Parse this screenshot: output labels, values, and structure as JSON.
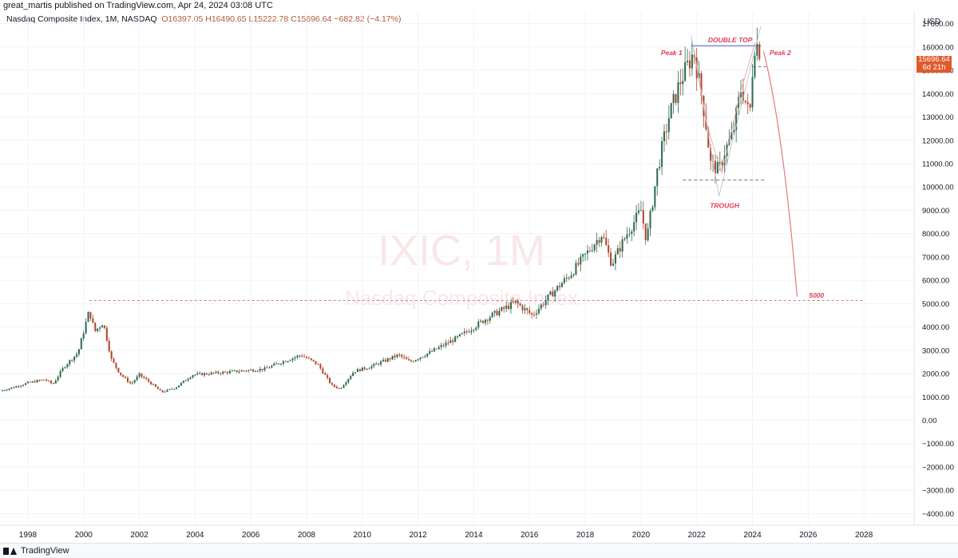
{
  "header": {
    "published": "great_martis published on TradingView.com, Apr 24, 2024 03:08 UTC",
    "symbol": "Nasdaq Composite Index, 1M, NASDAQ",
    "open": "O16397.05",
    "high": "H16490.65",
    "low": "L15222.78",
    "close": "C15696.64",
    "change": "−682.82 (−4.17%)"
  },
  "price_axis": {
    "currency": "USD",
    "current_price": "15696.64",
    "countdown": "6d 21h"
  },
  "watermark": {
    "symbol": "IXIC, 1M",
    "name": "Nasdaq Composite Index"
  },
  "footer": {
    "brand": "TradingView"
  },
  "colors": {
    "up": "#2d6b4f",
    "down": "#b4432c",
    "annotation": "#e0405a",
    "price_tag": "#e05a2b"
  },
  "chart_data": {
    "type": "candlestick",
    "title": "Nasdaq Composite Index, 1M, NASDAQ",
    "ylabel": "USD",
    "ylim": [
      -4500,
      17500
    ],
    "xlim": [
      1997.0,
      2029.8
    ],
    "grid": true,
    "x_ticks": [
      "1998",
      "2000",
      "2002",
      "2004",
      "2006",
      "2008",
      "2010",
      "2012",
      "2014",
      "2016",
      "2018",
      "2020",
      "2022",
      "2024",
      "2026",
      "2028"
    ],
    "y_ticks": [
      "17000.00",
      "16000.00",
      "15000.00",
      "14000.00",
      "13000.00",
      "12000.00",
      "11000.00",
      "10000.00",
      "9000.00",
      "8000.00",
      "7000.00",
      "6000.00",
      "5000.00",
      "4000.00",
      "3000.00",
      "2000.00",
      "1000.00",
      "0.00",
      "−1000.00",
      "−2000.00",
      "−3000.00",
      "−4000.00"
    ],
    "anchors": [
      [
        1997.0,
        1250
      ],
      [
        1998.0,
        1600
      ],
      [
        1998.6,
        1750
      ],
      [
        1998.9,
        1550
      ],
      [
        1999.3,
        2300
      ],
      [
        1999.8,
        2900
      ],
      [
        2000.2,
        4700
      ],
      [
        2000.4,
        3800
      ],
      [
        2000.7,
        4200
      ],
      [
        2001.0,
        2600
      ],
      [
        2001.3,
        2000
      ],
      [
        2001.7,
        1550
      ],
      [
        2002.0,
        1950
      ],
      [
        2002.4,
        1600
      ],
      [
        2002.8,
        1200
      ],
      [
        2003.3,
        1400
      ],
      [
        2003.9,
        1950
      ],
      [
        2004.5,
        2000
      ],
      [
        2005.5,
        2100
      ],
      [
        2006.5,
        2200
      ],
      [
        2007.0,
        2450
      ],
      [
        2007.8,
        2800
      ],
      [
        2008.4,
        2400
      ],
      [
        2008.9,
        1500
      ],
      [
        2009.2,
        1350
      ],
      [
        2009.7,
        2100
      ],
      [
        2010.3,
        2300
      ],
      [
        2011.3,
        2800
      ],
      [
        2011.7,
        2500
      ],
      [
        2012.5,
        2950
      ],
      [
        2013.5,
        3600
      ],
      [
        2014.5,
        4400
      ],
      [
        2015.5,
        5050
      ],
      [
        2016.1,
        4500
      ],
      [
        2016.7,
        5300
      ],
      [
        2017.5,
        6300
      ],
      [
        2018.6,
        8000
      ],
      [
        2018.95,
        6700
      ],
      [
        2019.5,
        8000
      ],
      [
        2020.0,
        9000
      ],
      [
        2020.2,
        7700
      ],
      [
        2020.6,
        10800
      ],
      [
        2021.0,
        13000
      ],
      [
        2021.4,
        14500
      ],
      [
        2021.9,
        15800
      ],
      [
        2022.3,
        13000
      ],
      [
        2022.5,
        11000
      ],
      [
        2022.8,
        10700
      ],
      [
        2023.0,
        11500
      ],
      [
        2023.3,
        12300
      ],
      [
        2023.6,
        14300
      ],
      [
        2023.9,
        13000
      ],
      [
        2024.0,
        15000
      ],
      [
        2024.1,
        16300
      ],
      [
        2024.3,
        15696.64
      ]
    ],
    "annotations": {
      "peak_1": "Peak 1",
      "peak_2": "Peak 2",
      "double_top": "DOUBLE TOP",
      "trough": "TROUGH",
      "target": "5000"
    },
    "levels": {
      "resistance_2000_high": 5130,
      "double_top": 16050,
      "neckline": 15150,
      "trough": 10300,
      "target": 5000
    },
    "projection": [
      [
        2024.4,
        15800
      ],
      [
        2025.1,
        12500
      ],
      [
        2025.6,
        5300
      ]
    ]
  }
}
